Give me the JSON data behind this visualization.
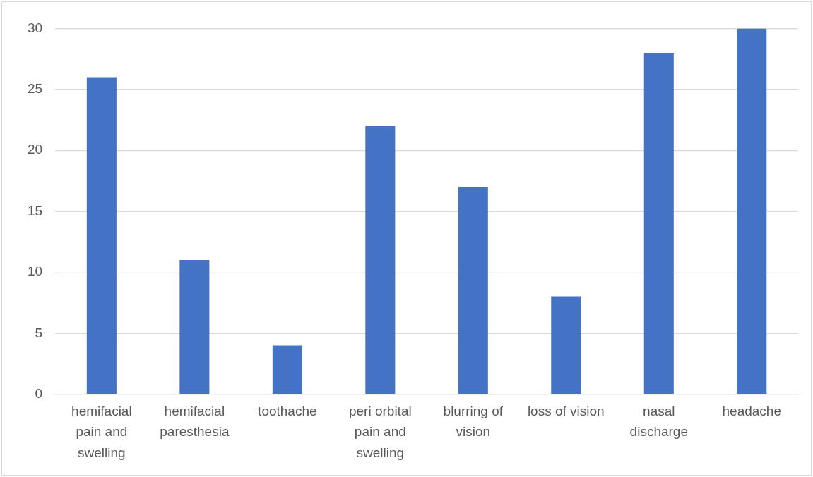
{
  "chart_data": {
    "type": "bar",
    "categories": [
      "hemifacial pain and swelling",
      "hemifacial paresthesia",
      "toothache",
      "peri orbital pain and swelling",
      "blurring of vision",
      "loss of vision",
      "nasal discharge",
      "headache"
    ],
    "values": [
      26,
      11,
      4,
      22,
      17,
      8,
      28,
      30
    ],
    "color": "#4472c4",
    "ylim": [
      0,
      30
    ],
    "yticks": [
      0,
      5,
      10,
      15,
      20,
      25,
      30
    ],
    "grid": "y",
    "legend": false
  }
}
